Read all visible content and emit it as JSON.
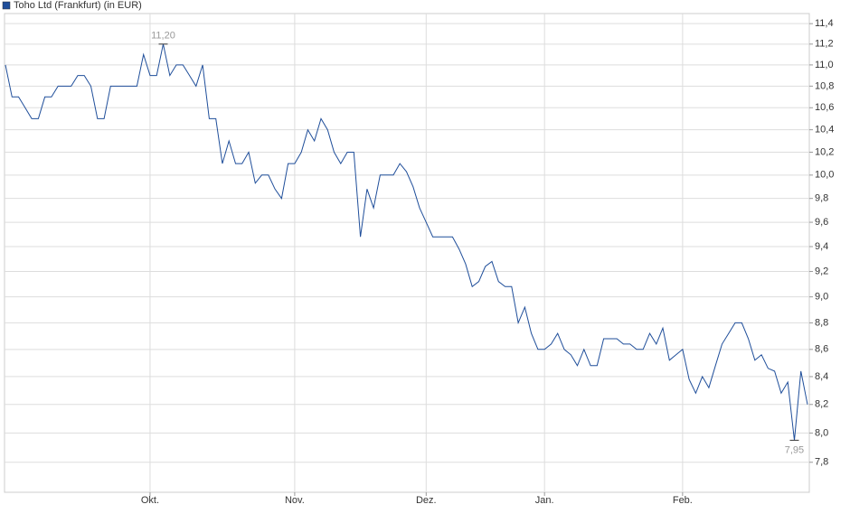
{
  "chart_data": {
    "type": "line",
    "log_scale": true,
    "grid": true,
    "legend": "top-left",
    "series": [
      {
        "name": "Toho Ltd (Frankfurt) (in EUR)",
        "color": "#1f4e9a",
        "values": [
          11.0,
          10.7,
          10.7,
          10.6,
          10.5,
          10.5,
          10.7,
          10.7,
          10.8,
          10.8,
          10.8,
          10.9,
          10.9,
          10.8,
          10.5,
          10.5,
          10.8,
          10.8,
          10.8,
          10.8,
          10.8,
          11.1,
          10.9,
          10.9,
          11.2,
          10.9,
          11.0,
          11.0,
          10.9,
          10.8,
          11.0,
          10.5,
          10.5,
          10.1,
          10.3,
          10.1,
          10.1,
          10.2,
          9.93,
          10.0,
          10.0,
          9.88,
          9.8,
          10.1,
          10.1,
          10.2,
          10.4,
          10.3,
          10.5,
          10.4,
          10.2,
          10.1,
          10.2,
          10.2,
          9.48,
          9.88,
          9.72,
          10.0,
          10.0,
          10.0,
          10.1,
          10.03,
          9.9,
          9.72,
          9.6,
          9.48,
          9.48,
          9.48,
          9.48,
          9.38,
          9.26,
          9.08,
          9.12,
          9.24,
          9.28,
          9.12,
          9.08,
          9.08,
          8.8,
          8.92,
          8.72,
          8.6,
          8.6,
          8.64,
          8.72,
          8.6,
          8.56,
          8.48,
          8.6,
          8.48,
          8.48,
          8.68,
          8.68,
          8.68,
          8.64,
          8.64,
          8.6,
          8.6,
          8.72,
          8.64,
          8.76,
          8.52,
          8.56,
          8.6,
          8.38,
          8.28,
          8.4,
          8.32,
          8.48,
          8.64,
          8.72,
          8.8,
          8.8,
          8.68,
          8.52,
          8.56,
          8.46,
          8.44,
          8.28,
          8.36,
          7.95,
          8.44,
          8.2
        ],
        "value_labels": [
          null,
          null,
          null,
          null,
          null,
          null,
          null,
          null,
          null,
          null,
          null,
          null,
          null,
          null,
          null,
          null,
          null,
          null,
          null,
          null,
          null,
          null,
          null,
          null,
          "11,20",
          null,
          null,
          null,
          null,
          null,
          null,
          null,
          null,
          null,
          null,
          null,
          null,
          null,
          null,
          null,
          null,
          null,
          null,
          null,
          null,
          null,
          null,
          null,
          null,
          null,
          null,
          null,
          null,
          null,
          null,
          null,
          null,
          null,
          null,
          null,
          null,
          null,
          null,
          null,
          null,
          null,
          null,
          null,
          null,
          null,
          null,
          null,
          null,
          null,
          null,
          null,
          null,
          null,
          null,
          null,
          null,
          null,
          null,
          null,
          null,
          null,
          null,
          null,
          null,
          null,
          null,
          null,
          null,
          null,
          null,
          null,
          null,
          null,
          null,
          null,
          null,
          null,
          null,
          null,
          null,
          null,
          null,
          null,
          null,
          null,
          null,
          null,
          null,
          null,
          null,
          null,
          null,
          null,
          null,
          null,
          "7,95",
          null,
          null
        ]
      }
    ],
    "categories": [
      null,
      null,
      null,
      null,
      null,
      null,
      null,
      null,
      null,
      null,
      null,
      null,
      null,
      null,
      null,
      null,
      null,
      null,
      null,
      null,
      null,
      null,
      "Okt.",
      null,
      null,
      null,
      null,
      null,
      null,
      null,
      null,
      null,
      null,
      null,
      null,
      null,
      null,
      null,
      null,
      null,
      null,
      null,
      null,
      null,
      "Nov.",
      null,
      null,
      null,
      null,
      null,
      null,
      null,
      null,
      null,
      null,
      null,
      null,
      null,
      null,
      null,
      null,
      null,
      null,
      null,
      "Dez.",
      null,
      null,
      null,
      null,
      null,
      null,
      null,
      null,
      null,
      null,
      null,
      null,
      null,
      null,
      null,
      null,
      null,
      "Jan.",
      null,
      null,
      null,
      null,
      null,
      null,
      null,
      null,
      null,
      null,
      null,
      null,
      null,
      null,
      null,
      null,
      null,
      null,
      null,
      null,
      "Feb.",
      null,
      null,
      null,
      null,
      null,
      null,
      null,
      null,
      null,
      null,
      null,
      null,
      null,
      null,
      null,
      null,
      null,
      null,
      null
    ],
    "ylim": [
      7.6,
      11.5
    ],
    "yticks": [
      {
        "value": 7.8,
        "label": "7,8"
      },
      {
        "value": 8.0,
        "label": "8,0"
      },
      {
        "value": 8.2,
        "label": "8,2"
      },
      {
        "value": 8.4,
        "label": "8,4"
      },
      {
        "value": 8.6,
        "label": "8,6"
      },
      {
        "value": 8.8,
        "label": "8,8"
      },
      {
        "value": 9.0,
        "label": "9,0"
      },
      {
        "value": 9.2,
        "label": "9,2"
      },
      {
        "value": 9.4,
        "label": "9,4"
      },
      {
        "value": 9.6,
        "label": "9,6"
      },
      {
        "value": 9.8,
        "label": "9,8"
      },
      {
        "value": 10.0,
        "label": "10,0"
      },
      {
        "value": 10.2,
        "label": "10,2"
      },
      {
        "value": 10.4,
        "label": "10,4"
      },
      {
        "value": 10.6,
        "label": "10,6"
      },
      {
        "value": 10.8,
        "label": "10,8"
      },
      {
        "value": 11.0,
        "label": "11,0"
      },
      {
        "value": 11.2,
        "label": "11,2"
      },
      {
        "value": 11.4,
        "label": "11,4"
      }
    ]
  }
}
